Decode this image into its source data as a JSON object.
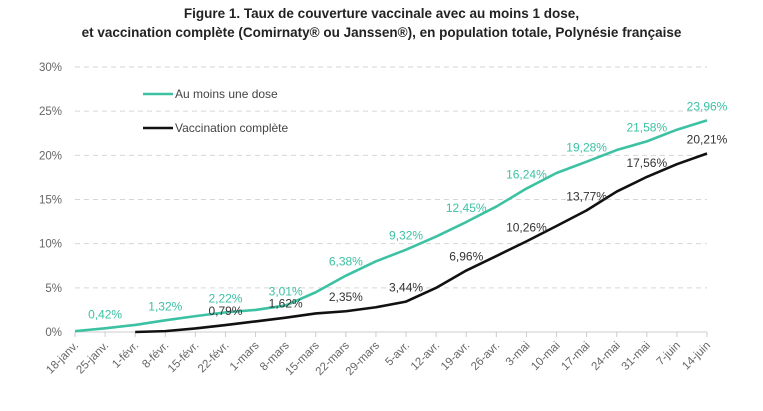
{
  "chart_data": {
    "type": "line",
    "title": "Figure 1. Taux de couverture vaccinale avec au moins 1 dose,",
    "subtitle": "et vaccination complète (Comirnaty® ou Janssen®), en population totale, Polynésie française",
    "xlabel": "",
    "ylabel": "",
    "ylim": [
      0,
      30
    ],
    "yticks": [
      "0%",
      "5%",
      "10%",
      "15%",
      "20%",
      "25%",
      "30%"
    ],
    "grid": true,
    "legend_placement": "top-left",
    "categories": [
      "18-janv.",
      "25-janv.",
      "1-févr.",
      "8-févr.",
      "15-févr.",
      "22-févr.",
      "1-mars",
      "8-mars",
      "15-mars",
      "22-mars",
      "29-mars",
      "5-avr.",
      "12-avr.",
      "19-avr.",
      "26-avr.",
      "3-mai",
      "10-mai",
      "17-mai",
      "24-mai",
      "31-mai",
      "7-juin",
      "14-juin"
    ],
    "series": [
      {
        "name": "Au moins une dose",
        "color": "#3cc2a3",
        "values": [
          0.1,
          0.42,
          0.8,
          1.32,
          1.8,
          2.22,
          2.5,
          3.01,
          4.5,
          6.38,
          8.0,
          9.32,
          10.8,
          12.45,
          14.2,
          16.24,
          18.0,
          19.28,
          20.6,
          21.58,
          22.9,
          23.96
        ],
        "labels": {
          "1": "0,42%",
          "3": "1,32%",
          "5": "2,22%",
          "7": "3,01%",
          "9": "6,38%",
          "11": "9,32%",
          "13": "12,45%",
          "15": "16,24%",
          "17": "19,28%",
          "19": "21,58%",
          "21": "23,96%"
        }
      },
      {
        "name": "Vaccination complète",
        "color": "#111111",
        "values": [
          null,
          null,
          0,
          0.1,
          0.4,
          0.79,
          1.2,
          1.62,
          2.1,
          2.35,
          2.8,
          3.44,
          5.0,
          6.96,
          8.6,
          10.26,
          12.0,
          13.77,
          15.9,
          17.56,
          19.0,
          20.21
        ],
        "labels": {
          "5": "0,79%",
          "7": "1,62%",
          "9": "2,35%",
          "11": "3,44%",
          "13": "6,96%",
          "15": "10,26%",
          "17": "13,77%",
          "19": "17,56%",
          "21": "20,21%"
        }
      }
    ]
  }
}
